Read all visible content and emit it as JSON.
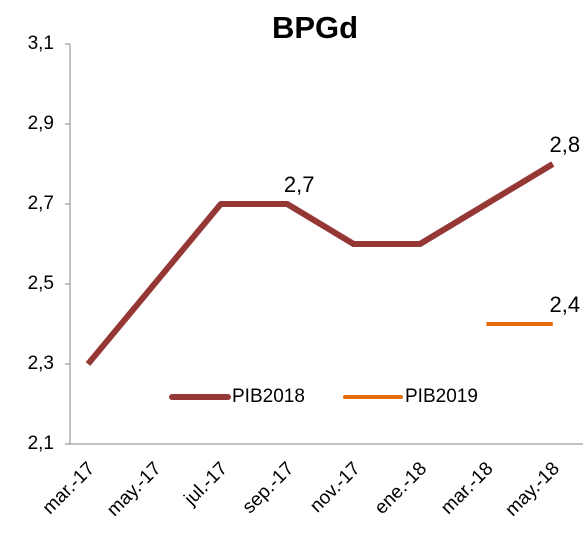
{
  "chart_data": {
    "type": "line",
    "title": "BPGd",
    "categories": [
      "mar.-17",
      "may.-17",
      "jul.-17",
      "sep.-17",
      "nov.-17",
      "ene.-18",
      "mar.-18",
      "may.-18"
    ],
    "series": [
      {
        "name": "PIB2018",
        "color": "#953735",
        "values": [
          2.3,
          2.5,
          2.7,
          2.7,
          2.6,
          2.6,
          2.7,
          2.8
        ],
        "value_labels": [
          null,
          null,
          null,
          "2,7",
          null,
          null,
          null,
          "2,8"
        ]
      },
      {
        "name": "PIB2019",
        "color": "#e46c0a",
        "values": [
          null,
          null,
          null,
          null,
          null,
          null,
          2.4,
          2.4
        ],
        "value_labels": [
          null,
          null,
          null,
          null,
          null,
          null,
          null,
          "2,4"
        ]
      }
    ],
    "ylim": [
      2.1,
      3.1
    ],
    "yticks": [
      {
        "value": 2.1,
        "label": "2,1"
      },
      {
        "value": 2.3,
        "label": "2,3"
      },
      {
        "value": 2.5,
        "label": "2,5"
      },
      {
        "value": 2.7,
        "label": "2,7"
      },
      {
        "value": 2.9,
        "label": "2,9"
      },
      {
        "value": 3.1,
        "label": "3,1"
      }
    ],
    "grid": false,
    "legend": "bottom"
  }
}
